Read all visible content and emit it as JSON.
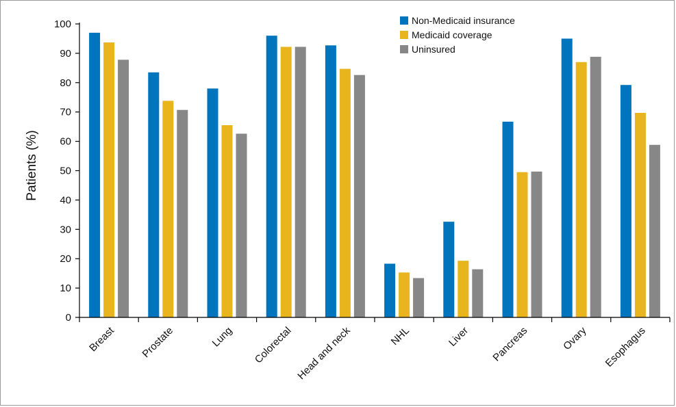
{
  "chart_data": {
    "type": "bar",
    "title": "",
    "xlabel": "",
    "ylabel": "Patients (%)",
    "ylim": [
      0,
      100
    ],
    "yticks": [
      0,
      10,
      20,
      30,
      40,
      50,
      60,
      70,
      80,
      90,
      100
    ],
    "grid": false,
    "legend_position": "top-right",
    "categories": [
      "Breast",
      "Prostate",
      "Lung",
      "Colorectal",
      "Head and neck",
      "NHL",
      "Liver",
      "Pancreas",
      "Ovary",
      "Esophagus"
    ],
    "series": [
      {
        "name": "Non-Medicaid insurance",
        "color": "#0075be",
        "values": [
          97,
          83.5,
          78,
          96,
          92.7,
          18.3,
          32.6,
          66.7,
          95,
          79.2
        ]
      },
      {
        "name": "Medicaid coverage",
        "color": "#e8b51e",
        "values": [
          93.7,
          73.8,
          65.5,
          92.2,
          84.7,
          15.3,
          19.3,
          49.5,
          87,
          69.7
        ]
      },
      {
        "name": "Uninsured",
        "color": "#878787",
        "values": [
          87.8,
          70.7,
          62.6,
          92.2,
          82.6,
          13.4,
          16.4,
          49.7,
          88.8,
          58.8
        ]
      }
    ]
  }
}
